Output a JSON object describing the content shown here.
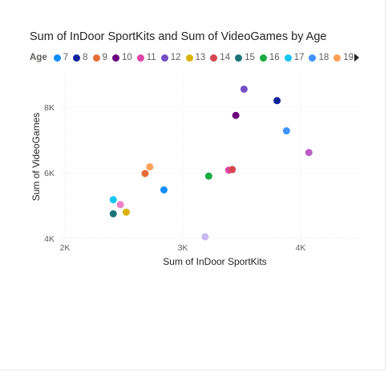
{
  "chart_data": {
    "type": "scatter",
    "title": "Sum of InDoor SportKits and Sum of VideoGames by Age",
    "xlabel": "Sum of InDoor SportKits",
    "ylabel": "Sum of VideoGames",
    "legend_title": "Age",
    "x_ticks": [
      "2K",
      "3K",
      "4K"
    ],
    "y_ticks": [
      "4K",
      "6K",
      "8K"
    ],
    "xlim": [
      2000,
      4500
    ],
    "ylim": [
      4000,
      9000
    ],
    "grid": true,
    "legend_position": "top",
    "series": [
      {
        "name": "7",
        "color": "#118DFF",
        "x": 2840,
        "y": 5480
      },
      {
        "name": "8",
        "color": "#12239E",
        "x": 3800,
        "y": 8200
      },
      {
        "name": "9",
        "color": "#E66C37",
        "x": 2680,
        "y": 5980
      },
      {
        "name": "10",
        "color": "#6B007B",
        "x": 3450,
        "y": 7750
      },
      {
        "name": "11",
        "color": "#E044A7",
        "x": 3390,
        "y": 6080
      },
      {
        "name": "12",
        "color": "#744EC2",
        "x": 3520,
        "y": 8550
      },
      {
        "name": "13",
        "color": "#D9B300",
        "x": 2520,
        "y": 4800
      },
      {
        "name": "14",
        "color": "#D64550",
        "x": 3420,
        "y": 6100
      },
      {
        "name": "15",
        "color": "#197278",
        "x": 2410,
        "y": 4750
      },
      {
        "name": "16",
        "color": "#1AAB40",
        "x": 3220,
        "y": 5900
      },
      {
        "name": "17",
        "color": "#15C6F4",
        "x": 2410,
        "y": 5180
      },
      {
        "name": "18",
        "color": "#4092FF",
        "x": 3880,
        "y": 7280
      },
      {
        "name": "19",
        "color": "#FFA058",
        "x": 2720,
        "y": 6180
      }
    ],
    "unlabeled_points": [
      {
        "color": "#BE5DC9",
        "x": 4070,
        "y": 6620
      },
      {
        "color": "#EB82C8",
        "x": 2470,
        "y": 5030
      },
      {
        "color": "#C8B8F0",
        "x": 3190,
        "y": 4050
      }
    ]
  }
}
